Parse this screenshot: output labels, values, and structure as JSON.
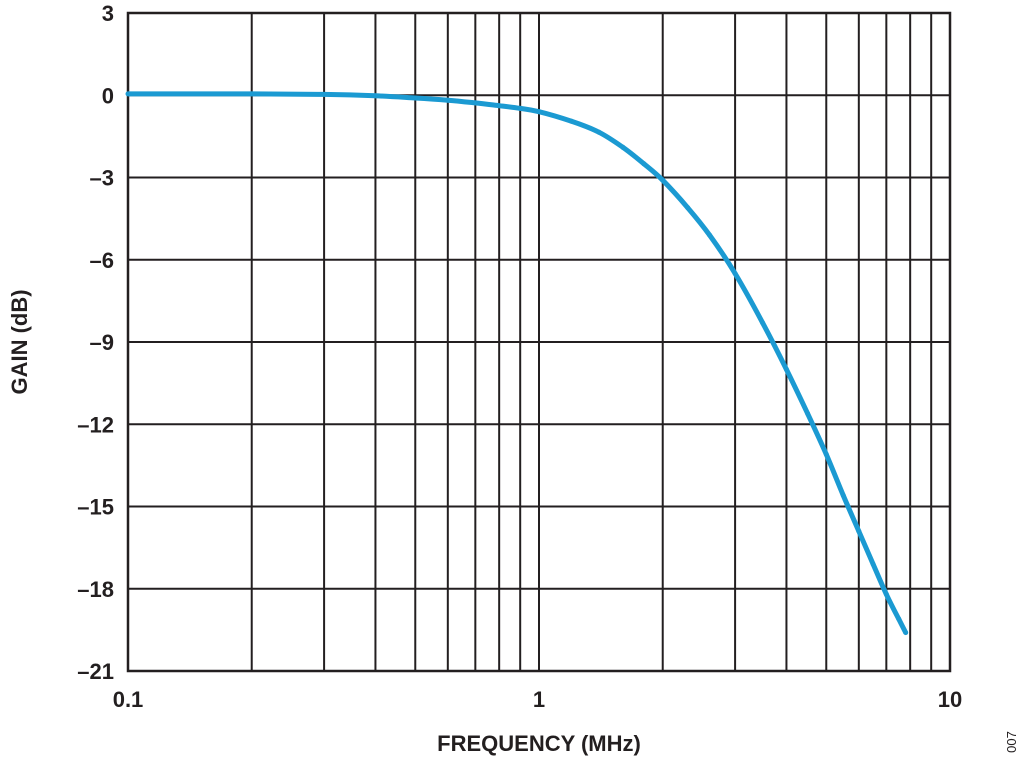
{
  "chart_data": {
    "type": "line",
    "title": "",
    "xlabel": "FREQUENCY (MHz)",
    "ylabel": "GAIN (dB)",
    "x_scale": "log",
    "xlim": [
      0.1,
      10
    ],
    "ylim": [
      -21,
      3
    ],
    "x_ticks": [
      {
        "value": 0.1,
        "label": "0.1"
      },
      {
        "value": 1,
        "label": "1"
      },
      {
        "value": 10,
        "label": "10"
      }
    ],
    "y_ticks": [
      {
        "value": 3,
        "label": "3"
      },
      {
        "value": 0,
        "label": "0"
      },
      {
        "value": -3,
        "label": "–3"
      },
      {
        "value": -6,
        "label": "–6"
      },
      {
        "value": -9,
        "label": "–9"
      },
      {
        "value": -12,
        "label": "–12"
      },
      {
        "value": -15,
        "label": "–15"
      },
      {
        "value": -18,
        "label": "–18"
      },
      {
        "value": -21,
        "label": "–21"
      }
    ],
    "grid": true,
    "series": [
      {
        "color": "#1b9ad2",
        "x": [
          0.1,
          0.2,
          0.3,
          0.4,
          0.5,
          0.6,
          0.7,
          0.8,
          0.9,
          1.0,
          1.2,
          1.4,
          1.6,
          1.8,
          2.0,
          2.3,
          2.6,
          3.0,
          3.5,
          4.0,
          4.5,
          5.0,
          5.5,
          6.0,
          6.5,
          7.0,
          7.5,
          7.8
        ],
        "y": [
          0.05,
          0.05,
          0.03,
          -0.02,
          -0.1,
          -0.18,
          -0.28,
          -0.38,
          -0.48,
          -0.6,
          -0.95,
          -1.35,
          -1.9,
          -2.5,
          -3.1,
          -4.1,
          -5.1,
          -6.5,
          -8.3,
          -10.0,
          -11.6,
          -13.1,
          -14.6,
          -15.9,
          -17.1,
          -18.2,
          -19.1,
          -19.6
        ]
      }
    ]
  },
  "figure_id": "007"
}
